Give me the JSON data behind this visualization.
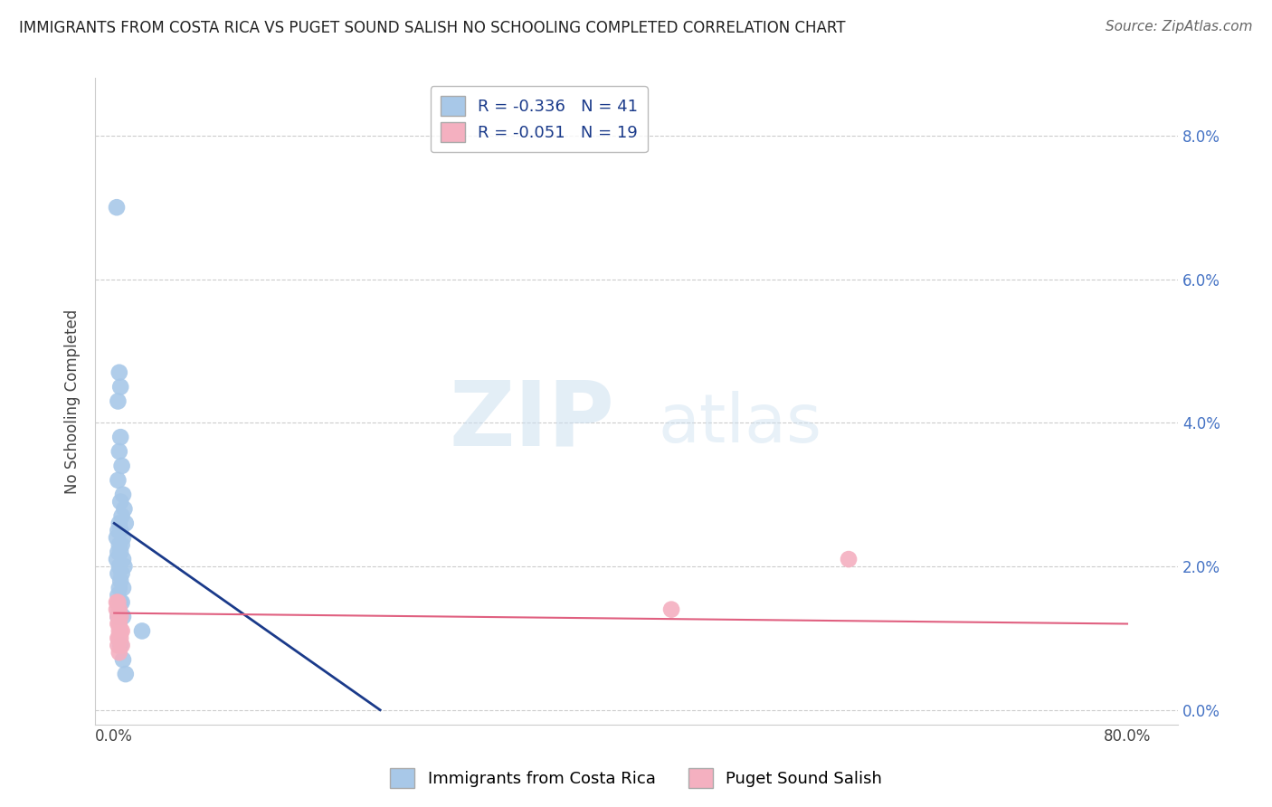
{
  "title": "IMMIGRANTS FROM COSTA RICA VS PUGET SOUND SALISH NO SCHOOLING COMPLETED CORRELATION CHART",
  "source": "Source: ZipAtlas.com",
  "ylabel_label": "No Schooling Completed",
  "legend_label1": "Immigrants from Costa Rica",
  "legend_label2": "Puget Sound Salish",
  "r1": "-0.336",
  "n1": "41",
  "r2": "-0.051",
  "n2": "19",
  "blue_color": "#a8c8e8",
  "pink_color": "#f4b0c0",
  "blue_line_color": "#1a3a8a",
  "pink_line_color": "#e06080",
  "blue_scatter": [
    [
      0.002,
      0.07
    ],
    [
      0.004,
      0.047
    ],
    [
      0.005,
      0.045
    ],
    [
      0.003,
      0.043
    ],
    [
      0.005,
      0.038
    ],
    [
      0.004,
      0.036
    ],
    [
      0.006,
      0.034
    ],
    [
      0.003,
      0.032
    ],
    [
      0.007,
      0.03
    ],
    [
      0.005,
      0.029
    ],
    [
      0.008,
      0.028
    ],
    [
      0.006,
      0.027
    ],
    [
      0.009,
      0.026
    ],
    [
      0.004,
      0.026
    ],
    [
      0.003,
      0.025
    ],
    [
      0.005,
      0.025
    ],
    [
      0.007,
      0.024
    ],
    [
      0.002,
      0.024
    ],
    [
      0.004,
      0.023
    ],
    [
      0.006,
      0.023
    ],
    [
      0.003,
      0.022
    ],
    [
      0.005,
      0.022
    ],
    [
      0.007,
      0.021
    ],
    [
      0.002,
      0.021
    ],
    [
      0.004,
      0.02
    ],
    [
      0.008,
      0.02
    ],
    [
      0.003,
      0.019
    ],
    [
      0.006,
      0.019
    ],
    [
      0.005,
      0.018
    ],
    [
      0.004,
      0.017
    ],
    [
      0.007,
      0.017
    ],
    [
      0.003,
      0.016
    ],
    [
      0.005,
      0.015
    ],
    [
      0.006,
      0.015
    ],
    [
      0.004,
      0.014
    ],
    [
      0.003,
      0.013
    ],
    [
      0.007,
      0.013
    ],
    [
      0.022,
      0.011
    ],
    [
      0.005,
      0.009
    ],
    [
      0.007,
      0.007
    ],
    [
      0.009,
      0.005
    ]
  ],
  "pink_scatter": [
    [
      0.002,
      0.015
    ],
    [
      0.003,
      0.015
    ],
    [
      0.004,
      0.014
    ],
    [
      0.002,
      0.014
    ],
    [
      0.003,
      0.013
    ],
    [
      0.005,
      0.013
    ],
    [
      0.004,
      0.012
    ],
    [
      0.003,
      0.012
    ],
    [
      0.005,
      0.011
    ],
    [
      0.006,
      0.011
    ],
    [
      0.004,
      0.011
    ],
    [
      0.003,
      0.01
    ],
    [
      0.005,
      0.01
    ],
    [
      0.004,
      0.01
    ],
    [
      0.006,
      0.009
    ],
    [
      0.003,
      0.009
    ],
    [
      0.58,
      0.021
    ],
    [
      0.44,
      0.014
    ],
    [
      0.004,
      0.008
    ]
  ],
  "xlim": [
    -0.015,
    0.84
  ],
  "ylim": [
    -0.002,
    0.088
  ],
  "xticks": [
    0.0,
    0.8
  ],
  "yticks": [
    0.0,
    0.02,
    0.04,
    0.06,
    0.08
  ],
  "ytick_labels": [
    "0.0%",
    "2.0%",
    "4.0%",
    "6.0%",
    "8.0%"
  ],
  "xtick_labels": [
    "0.0%",
    "80.0%"
  ],
  "blue_trend_x": [
    0.0,
    0.21
  ],
  "blue_trend_y_start": 0.026,
  "blue_trend_y_end": 0.0,
  "pink_trend_x": [
    0.0,
    0.8
  ],
  "pink_trend_y_start": 0.0135,
  "pink_trend_y_end": 0.012,
  "watermark_zip": "ZIP",
  "watermark_atlas": "atlas",
  "background_color": "#ffffff",
  "grid_color": "#cccccc",
  "title_fontsize": 12,
  "source_fontsize": 11,
  "tick_fontsize": 12,
  "ylabel_fontsize": 12
}
